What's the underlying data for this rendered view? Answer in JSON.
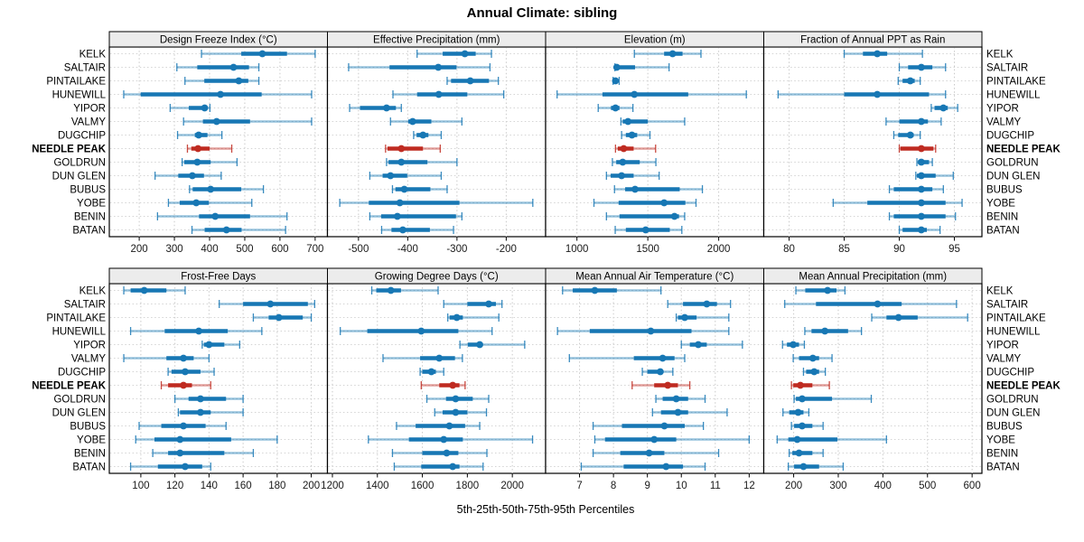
{
  "title": "Annual Climate: sibling",
  "footer": "5th-25th-50th-75th-95th Percentiles",
  "colors": {
    "series": "#1777b4",
    "highlight": "#bf2b21",
    "strip_bg": "#ececec",
    "grid": "#c9c9c9",
    "panel_border": "#000000",
    "tick_text": "#1a1a1a"
  },
  "chart_data": {
    "type": "dotplot-percentiles",
    "percentiles": [
      5,
      25,
      50,
      75,
      95
    ],
    "legend_position": "none",
    "grid": "dotted",
    "highlight_site": "NEEDLE PEAK",
    "sites": [
      "KELK",
      "SALTAIR",
      "PINTAILAKE",
      "HUNEWILL",
      "YIPOR",
      "VALMY",
      "DUGCHIP",
      "NEEDLE PEAK",
      "GOLDRUN",
      "DUN GLEN",
      "BUBUS",
      "YOBE",
      "BENIN",
      "BATAN"
    ],
    "panels": [
      {
        "title": "Design Freeze Index (°C)",
        "grid_row": 0,
        "grid_col": 0,
        "domain": [
          115,
          735
        ],
        "ticks": [
          200,
          300,
          400,
          500,
          600,
          700
        ],
        "series": [
          [
            377,
            490,
            550,
            620,
            700
          ],
          [
            307,
            365,
            468,
            512,
            540
          ],
          [
            330,
            385,
            483,
            510,
            540
          ],
          [
            156,
            204,
            431,
            548,
            690
          ],
          [
            288,
            341,
            386,
            392,
            401
          ],
          [
            326,
            381,
            420,
            515,
            690
          ],
          [
            309,
            358,
            369,
            394,
            435
          ],
          [
            337,
            348,
            367,
            400,
            463
          ],
          [
            322,
            328,
            365,
            403,
            478
          ],
          [
            245,
            311,
            351,
            384,
            433
          ],
          [
            343,
            352,
            403,
            490,
            553
          ],
          [
            283,
            315,
            362,
            398,
            520
          ],
          [
            252,
            370,
            416,
            515,
            620
          ],
          [
            350,
            386,
            448,
            491,
            616
          ]
        ]
      },
      {
        "title": "Effective Precipitation (mm)",
        "grid_row": 0,
        "grid_col": 1,
        "domain": [
          -563,
          -120
        ],
        "ticks": [
          -500,
          -400,
          -300,
          -200
        ],
        "series": [
          [
            -381,
            -329,
            -284,
            -262,
            -230
          ],
          [
            -520,
            -437,
            -338,
            -301,
            -233
          ],
          [
            -320,
            -312,
            -273,
            -235,
            -216
          ],
          [
            -430,
            -381,
            -337,
            -279,
            -205
          ],
          [
            -518,
            -497,
            -443,
            -424,
            -413
          ],
          [
            -435,
            -399,
            -390,
            -352,
            -290
          ],
          [
            -388,
            -382,
            -369,
            -358,
            -332
          ],
          [
            -445,
            -441,
            -413,
            -369,
            -334
          ],
          [
            -443,
            -439,
            -413,
            -360,
            -300
          ],
          [
            -477,
            -451,
            -435,
            -401,
            -332
          ],
          [
            -431,
            -425,
            -407,
            -354,
            -320
          ],
          [
            -538,
            -479,
            -416,
            -295,
            -146
          ],
          [
            -477,
            -454,
            -421,
            -302,
            -290
          ],
          [
            -453,
            -433,
            -410,
            -355,
            -307
          ]
        ]
      },
      {
        "title": "Elevation (m)",
        "grid_row": 0,
        "grid_col": 2,
        "domain": [
          779,
          2318
        ],
        "ticks": [
          1000,
          1500,
          2000
        ],
        "series": [
          [
            1405,
            1615,
            1675,
            1745,
            1875
          ],
          [
            1268,
            1272,
            1281,
            1410,
            1650
          ],
          [
            1255,
            1262,
            1272,
            1282,
            1298
          ],
          [
            860,
            1180,
            1405,
            1785,
            2195
          ],
          [
            1150,
            1240,
            1272,
            1300,
            1395
          ],
          [
            1310,
            1323,
            1360,
            1500,
            1760
          ],
          [
            1315,
            1345,
            1388,
            1425,
            1515
          ],
          [
            1272,
            1288,
            1330,
            1400,
            1555
          ],
          [
            1250,
            1277,
            1323,
            1443,
            1557
          ],
          [
            1208,
            1238,
            1315,
            1400,
            1580
          ],
          [
            1265,
            1340,
            1410,
            1725,
            1885
          ],
          [
            1120,
            1294,
            1615,
            1765,
            1840
          ],
          [
            1208,
            1300,
            1688,
            1720,
            1760
          ],
          [
            1270,
            1345,
            1485,
            1655,
            1740
          ]
        ]
      },
      {
        "title": "Fraction of Annual PPT as Rain",
        "grid_row": 0,
        "grid_col": 3,
        "domain": [
          77.7,
          97.5
        ],
        "ticks": [
          80,
          85,
          90,
          95
        ],
        "series": [
          [
            85.0,
            86.7,
            88.0,
            88.9,
            92.1
          ],
          [
            90.0,
            90.8,
            92.0,
            93.0,
            94.2
          ],
          [
            89.9,
            90.3,
            91.0,
            91.4,
            91.9
          ],
          [
            79.0,
            85.0,
            88.0,
            92.7,
            94.2
          ],
          [
            92.9,
            93.2,
            94.0,
            94.4,
            95.3
          ],
          [
            88.8,
            90.0,
            92.0,
            92.6,
            93.8
          ],
          [
            89.5,
            89.9,
            91.0,
            91.3,
            91.9
          ],
          [
            90.0,
            90.1,
            92.0,
            93.1,
            93.3
          ],
          [
            91.6,
            91.7,
            92.0,
            92.7,
            93.0
          ],
          [
            91.5,
            91.6,
            92.0,
            93.3,
            94.9
          ],
          [
            89.1,
            89.5,
            92.0,
            93.0,
            94.0
          ],
          [
            84.0,
            87.1,
            92.0,
            94.2,
            95.7
          ],
          [
            89.1,
            89.5,
            92.0,
            94.2,
            95.1
          ],
          [
            90.0,
            90.3,
            92.0,
            92.5,
            93.7
          ]
        ]
      },
      {
        "title": "Frost-Free Days",
        "grid_row": 1,
        "grid_col": 0,
        "domain": [
          81.5,
          209.5
        ],
        "ticks": [
          100,
          120,
          140,
          160,
          180,
          200
        ],
        "series": [
          [
            90,
            94,
            102,
            115,
            126
          ],
          [
            146,
            160,
            176,
            198,
            202
          ],
          [
            166,
            175,
            181,
            195,
            200
          ],
          [
            94,
            114,
            134,
            151,
            171
          ],
          [
            136,
            137,
            140,
            149,
            158
          ],
          [
            90,
            115,
            125,
            131,
            140
          ],
          [
            116,
            118,
            126,
            135,
            143
          ],
          [
            112,
            116,
            125,
            130,
            141
          ],
          [
            120,
            128,
            135,
            150,
            160
          ],
          [
            122,
            123,
            135,
            141,
            160
          ],
          [
            99,
            112,
            125,
            138,
            150
          ],
          [
            97,
            108,
            123,
            153,
            180
          ],
          [
            107,
            116,
            123,
            149,
            166
          ],
          [
            94,
            110,
            126,
            136,
            141
          ]
        ]
      },
      {
        "title": "Growing Degree Days (°C)",
        "grid_row": 1,
        "grid_col": 1,
        "domain": [
          1178,
          2148
        ],
        "ticks": [
          1200,
          1400,
          1600,
          1800,
          2000
        ],
        "series": [
          [
            1375,
            1395,
            1460,
            1505,
            1670
          ],
          [
            1695,
            1800,
            1895,
            1927,
            1954
          ],
          [
            1713,
            1721,
            1753,
            1780,
            1940
          ],
          [
            1235,
            1355,
            1595,
            1760,
            1910
          ],
          [
            1767,
            1802,
            1855,
            1868,
            2055
          ],
          [
            1425,
            1590,
            1675,
            1745,
            1778
          ],
          [
            1590,
            1600,
            1640,
            1660,
            1695
          ],
          [
            1595,
            1675,
            1735,
            1765,
            1790
          ],
          [
            1620,
            1705,
            1748,
            1824,
            1895
          ],
          [
            1655,
            1690,
            1748,
            1800,
            1885
          ],
          [
            1485,
            1570,
            1720,
            1790,
            1855
          ],
          [
            1360,
            1540,
            1695,
            1780,
            2090
          ],
          [
            1467,
            1600,
            1708,
            1760,
            1887
          ],
          [
            1475,
            1595,
            1735,
            1765,
            1870
          ]
        ]
      },
      {
        "title": "Mean Annual Air Temperature (°C)",
        "grid_row": 1,
        "grid_col": 2,
        "domain": [
          6.0,
          12.43
        ],
        "ticks": [
          7,
          8,
          9,
          10,
          11,
          12
        ],
        "series": [
          [
            6.5,
            6.8,
            7.45,
            8.1,
            9.4
          ],
          [
            9.6,
            10.05,
            10.75,
            11.05,
            11.45
          ],
          [
            9.85,
            9.9,
            10.1,
            10.45,
            11.4
          ],
          [
            6.35,
            7.3,
            9.1,
            10.3,
            11.4
          ],
          [
            10.0,
            10.25,
            10.5,
            10.75,
            11.8
          ],
          [
            6.7,
            8.6,
            9.45,
            9.8,
            10.1
          ],
          [
            8.85,
            9.0,
            9.38,
            9.45,
            9.75
          ],
          [
            8.55,
            9.2,
            9.6,
            9.9,
            10.25
          ],
          [
            9.25,
            9.45,
            9.85,
            10.2,
            10.7
          ],
          [
            9.15,
            9.4,
            9.9,
            10.2,
            11.35
          ],
          [
            7.4,
            8.25,
            9.5,
            10.1,
            10.65
          ],
          [
            7.45,
            7.75,
            9.2,
            9.85,
            12.0
          ],
          [
            7.4,
            8.2,
            9.05,
            9.5,
            11.1
          ],
          [
            7.05,
            8.3,
            9.55,
            10.05,
            10.7
          ]
        ]
      },
      {
        "title": "Mean Annual Precipitation (mm)",
        "grid_row": 1,
        "grid_col": 3,
        "domain": [
          133,
          622
        ],
        "ticks": [
          200,
          300,
          400,
          500,
          600
        ],
        "series": [
          [
            205,
            226,
            276,
            296,
            315
          ],
          [
            180,
            250,
            388,
            442,
            565
          ],
          [
            375,
            408,
            435,
            478,
            590
          ],
          [
            225,
            240,
            270,
            322,
            352
          ],
          [
            175,
            185,
            199,
            212,
            224
          ],
          [
            199,
            212,
            243,
            257,
            286
          ],
          [
            222,
            228,
            246,
            257,
            271
          ],
          [
            195,
            199,
            215,
            242,
            280
          ],
          [
            201,
            205,
            219,
            286,
            374
          ],
          [
            176,
            190,
            210,
            222,
            234
          ],
          [
            195,
            201,
            219,
            242,
            266
          ],
          [
            163,
            188,
            208,
            298,
            408
          ],
          [
            190,
            197,
            212,
            242,
            266
          ],
          [
            188,
            201,
            222,
            257,
            311
          ]
        ]
      }
    ]
  }
}
